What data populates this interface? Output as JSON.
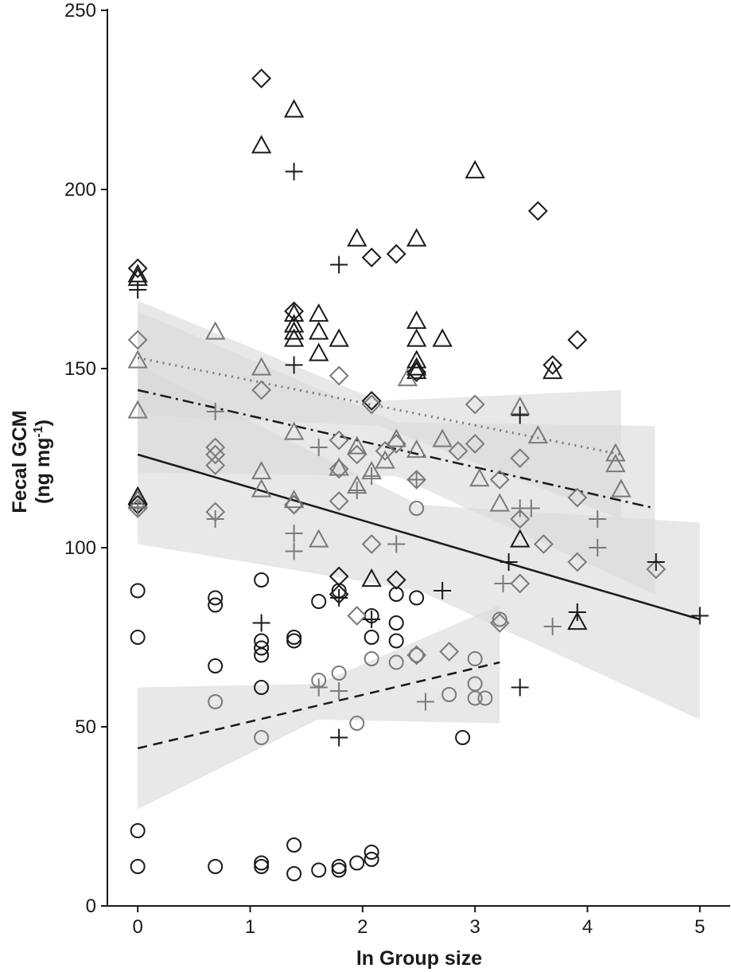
{
  "chart_data": {
    "type": "scatter",
    "xlabel": "ln Group size",
    "ylabel_line1": "Fecal GCM",
    "ylabel_line2": "(ng mg",
    "ylabel_sup": "-1",
    "ylabel_close": ")",
    "xlim": [
      -0.27,
      5.27
    ],
    "ylim": [
      0,
      250
    ],
    "xticks": [
      0,
      1,
      2,
      3,
      4,
      5
    ],
    "yticks": [
      0,
      50,
      100,
      150,
      200,
      250
    ],
    "grid": false,
    "legend": "none",
    "colors": {
      "black": "#1a1a1a",
      "gray": "#7a7a7a",
      "band": "#d9d9d9"
    },
    "series": [
      {
        "marker": "circle",
        "color": "black",
        "points": [
          [
            0,
            88
          ],
          [
            0,
            75
          ],
          [
            0,
            21
          ],
          [
            0,
            11
          ],
          [
            0.69,
            86
          ],
          [
            0.69,
            84
          ],
          [
            0.69,
            67
          ],
          [
            0.69,
            11
          ],
          [
            1.1,
            91
          ],
          [
            1.1,
            74
          ],
          [
            1.1,
            72
          ],
          [
            1.1,
            70
          ],
          [
            1.1,
            61
          ],
          [
            1.1,
            12
          ],
          [
            1.1,
            11
          ],
          [
            1.39,
            75
          ],
          [
            1.39,
            74
          ],
          [
            1.39,
            17
          ],
          [
            1.39,
            9
          ],
          [
            1.61,
            85
          ],
          [
            1.61,
            10
          ],
          [
            1.79,
            88
          ],
          [
            1.79,
            11
          ],
          [
            1.79,
            10
          ],
          [
            1.95,
            12
          ],
          [
            2.08,
            81
          ],
          [
            2.08,
            75
          ],
          [
            2.08,
            15
          ],
          [
            2.08,
            13
          ],
          [
            2.3,
            87
          ],
          [
            2.3,
            79
          ],
          [
            2.3,
            74
          ],
          [
            2.48,
            86
          ],
          [
            2.89,
            47
          ]
        ]
      },
      {
        "marker": "circle",
        "color": "gray",
        "points": [
          [
            0.69,
            57
          ],
          [
            1.1,
            47
          ],
          [
            1.61,
            63
          ],
          [
            1.79,
            65
          ],
          [
            1.95,
            51
          ],
          [
            2.08,
            69
          ],
          [
            2.3,
            68
          ],
          [
            2.48,
            111
          ],
          [
            2.48,
            70
          ],
          [
            2.77,
            59
          ],
          [
            3.0,
            69
          ],
          [
            3.0,
            62
          ],
          [
            3.0,
            58
          ],
          [
            3.09,
            58
          ],
          [
            3.22,
            80
          ]
        ]
      },
      {
        "marker": "triangle",
        "color": "black",
        "points": [
          [
            0,
            176
          ],
          [
            0,
            175
          ],
          [
            0,
            114
          ],
          [
            1.1,
            212
          ],
          [
            1.39,
            222
          ],
          [
            1.39,
            165
          ],
          [
            1.39,
            162
          ],
          [
            1.39,
            160
          ],
          [
            1.39,
            158
          ],
          [
            1.61,
            165
          ],
          [
            1.61,
            160
          ],
          [
            1.61,
            154
          ],
          [
            1.79,
            158
          ],
          [
            1.95,
            186
          ],
          [
            2.08,
            91
          ],
          [
            2.48,
            186
          ],
          [
            2.48,
            163
          ],
          [
            2.48,
            158
          ],
          [
            2.48,
            152
          ],
          [
            2.48,
            150
          ],
          [
            2.48,
            149
          ],
          [
            2.71,
            158
          ],
          [
            3.0,
            205
          ],
          [
            3.4,
            102
          ],
          [
            3.69,
            149
          ],
          [
            3.91,
            79
          ]
        ]
      },
      {
        "marker": "triangle",
        "color": "gray",
        "points": [
          [
            0,
            152
          ],
          [
            0,
            138
          ],
          [
            0,
            113
          ],
          [
            0.69,
            160
          ],
          [
            1.1,
            150
          ],
          [
            1.1,
            121
          ],
          [
            1.1,
            116
          ],
          [
            1.39,
            132
          ],
          [
            1.39,
            113
          ],
          [
            1.61,
            102
          ],
          [
            1.79,
            122
          ],
          [
            1.95,
            117
          ],
          [
            1.95,
            128
          ],
          [
            2.08,
            121
          ],
          [
            2.2,
            124
          ],
          [
            2.3,
            130
          ],
          [
            2.4,
            147
          ],
          [
            2.48,
            127
          ],
          [
            2.71,
            130
          ],
          [
            3.04,
            119
          ],
          [
            3.22,
            112
          ],
          [
            3.4,
            139
          ],
          [
            3.56,
            131
          ],
          [
            4.25,
            126
          ],
          [
            4.25,
            123
          ],
          [
            4.3,
            116
          ]
        ]
      },
      {
        "marker": "diamond",
        "color": "black",
        "points": [
          [
            0,
            178
          ],
          [
            0,
            112
          ],
          [
            1.1,
            231
          ],
          [
            1.39,
            166
          ],
          [
            1.39,
            112
          ],
          [
            1.79,
            92
          ],
          [
            1.79,
            87
          ],
          [
            2.08,
            181
          ],
          [
            2.08,
            141
          ],
          [
            2.3,
            182
          ],
          [
            2.3,
            91
          ],
          [
            2.48,
            149
          ],
          [
            3.56,
            194
          ],
          [
            3.69,
            151
          ],
          [
            3.91,
            158
          ]
        ]
      },
      {
        "marker": "diamond",
        "color": "gray",
        "points": [
          [
            0,
            158
          ],
          [
            0,
            111
          ],
          [
            0.69,
            128
          ],
          [
            0.69,
            126
          ],
          [
            0.69,
            123
          ],
          [
            0.69,
            110
          ],
          [
            1.1,
            144
          ],
          [
            1.39,
            112
          ],
          [
            1.79,
            148
          ],
          [
            1.79,
            130
          ],
          [
            1.79,
            122
          ],
          [
            1.79,
            113
          ],
          [
            1.95,
            126
          ],
          [
            1.95,
            81
          ],
          [
            2.08,
            140
          ],
          [
            2.08,
            101
          ],
          [
            2.2,
            127
          ],
          [
            2.3,
            129
          ],
          [
            2.48,
            119
          ],
          [
            2.48,
            70
          ],
          [
            2.77,
            71
          ],
          [
            2.85,
            127
          ],
          [
            3.0,
            140
          ],
          [
            3.0,
            129
          ],
          [
            3.22,
            119
          ],
          [
            3.22,
            79
          ],
          [
            3.4,
            125
          ],
          [
            3.4,
            108
          ],
          [
            3.4,
            90
          ],
          [
            3.61,
            101
          ],
          [
            3.91,
            114
          ],
          [
            3.91,
            96
          ],
          [
            4.61,
            94
          ]
        ]
      },
      {
        "marker": "plus",
        "color": "black",
        "points": [
          [
            0,
            172
          ],
          [
            1.1,
            79
          ],
          [
            1.39,
            205
          ],
          [
            1.39,
            151
          ],
          [
            1.79,
            179
          ],
          [
            1.79,
            86
          ],
          [
            1.79,
            47
          ],
          [
            2.08,
            80
          ],
          [
            2.71,
            88
          ],
          [
            3.3,
            96
          ],
          [
            3.4,
            137
          ],
          [
            3.4,
            61
          ],
          [
            3.91,
            82
          ],
          [
            4.61,
            96
          ],
          [
            5.0,
            81
          ]
        ]
      },
      {
        "marker": "plus",
        "color": "gray",
        "points": [
          [
            0,
            111
          ],
          [
            0.69,
            138
          ],
          [
            0.69,
            108
          ],
          [
            1.39,
            104
          ],
          [
            1.39,
            99
          ],
          [
            1.61,
            128
          ],
          [
            1.61,
            61
          ],
          [
            1.79,
            60
          ],
          [
            1.95,
            116
          ],
          [
            2.08,
            120
          ],
          [
            2.3,
            101
          ],
          [
            2.48,
            119
          ],
          [
            2.56,
            57
          ],
          [
            3.25,
            90
          ],
          [
            3.4,
            111
          ],
          [
            3.5,
            111
          ],
          [
            3.69,
            78
          ],
          [
            4.09,
            108
          ],
          [
            4.09,
            100
          ]
        ]
      }
    ],
    "fits": [
      {
        "style": "solid",
        "color": "black",
        "x": [
          0,
          5.0
        ],
        "y": [
          126,
          80
        ],
        "band_x": [
          0,
          2.5,
          5.0
        ],
        "band_lo": [
          101,
          88,
          52
        ],
        "band_hi": [
          151,
          112,
          107
        ]
      },
      {
        "style": "dashdot",
        "color": "black",
        "x": [
          0,
          4.6
        ],
        "y": [
          144,
          111
        ],
        "band_x": [
          0,
          2.3,
          4.6
        ],
        "band_lo": [
          121,
          120,
          87
        ],
        "band_hi": [
          166,
          135,
          134
        ]
      },
      {
        "style": "dotted",
        "color": "gray",
        "x": [
          0,
          4.3
        ],
        "y": [
          153,
          126
        ],
        "band_x": [
          0,
          2.15,
          4.3
        ],
        "band_lo": [
          137,
          134,
          108
        ],
        "band_hi": [
          169,
          141,
          144
        ]
      },
      {
        "style": "dashed",
        "color": "black",
        "x": [
          0,
          3.22
        ],
        "y": [
          44,
          68
        ],
        "band_x": [
          0,
          1.6,
          3.22
        ],
        "band_lo": [
          27,
          52,
          51
        ],
        "band_hi": [
          61,
          62,
          84
        ]
      }
    ]
  }
}
